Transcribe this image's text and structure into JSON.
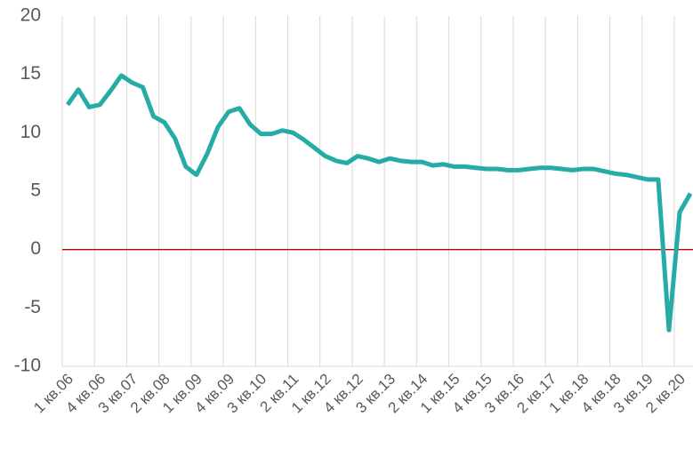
{
  "chart_data": {
    "type": "line",
    "categories": [
      "1 кв.06",
      null,
      null,
      "4 кв.06",
      null,
      null,
      "3 кв.07",
      null,
      null,
      "2 кв.08",
      null,
      null,
      "1 кв.09",
      null,
      null,
      "4 кв.09",
      null,
      null,
      "3 кв.10",
      null,
      null,
      "2 кв.11",
      null,
      null,
      "1 кв.12",
      null,
      null,
      "4 кв.12",
      null,
      null,
      "3 кв.13",
      null,
      null,
      "2 кв.14",
      null,
      null,
      "1 кв.15",
      null,
      null,
      "4 кв.15",
      null,
      null,
      "3 кв.16",
      null,
      null,
      "2 кв.17",
      null,
      null,
      "1 кв.18",
      null,
      null,
      "4 кв.18",
      null,
      null,
      "3 кв.19",
      null,
      null,
      "2 кв.20",
      null
    ],
    "series": [
      {
        "color": "#26aba5",
        "values": [
          12.4,
          13.7,
          12.2,
          12.4,
          13.6,
          14.9,
          14.3,
          13.9,
          11.4,
          10.9,
          9.5,
          7.1,
          6.4,
          8.2,
          10.5,
          11.8,
          12.1,
          10.7,
          9.9,
          9.9,
          10.2,
          10.0,
          9.4,
          8.7,
          8.0,
          7.6,
          7.4,
          8.0,
          7.8,
          7.5,
          7.8,
          7.6,
          7.5,
          7.5,
          7.2,
          7.3,
          7.1,
          7.1,
          7.0,
          6.9,
          6.9,
          6.8,
          6.8,
          6.9,
          7.0,
          7.0,
          6.9,
          6.8,
          6.9,
          6.9,
          6.7,
          6.5,
          6.4,
          6.2,
          6.0,
          6.0,
          -6.9,
          3.2,
          4.8
        ]
      }
    ],
    "ylim": [
      -10,
      20
    ],
    "yticks": [
      -10,
      -5,
      0,
      5,
      10,
      15,
      20
    ],
    "zero_line_color": "#c00000",
    "grid": "vertical"
  }
}
